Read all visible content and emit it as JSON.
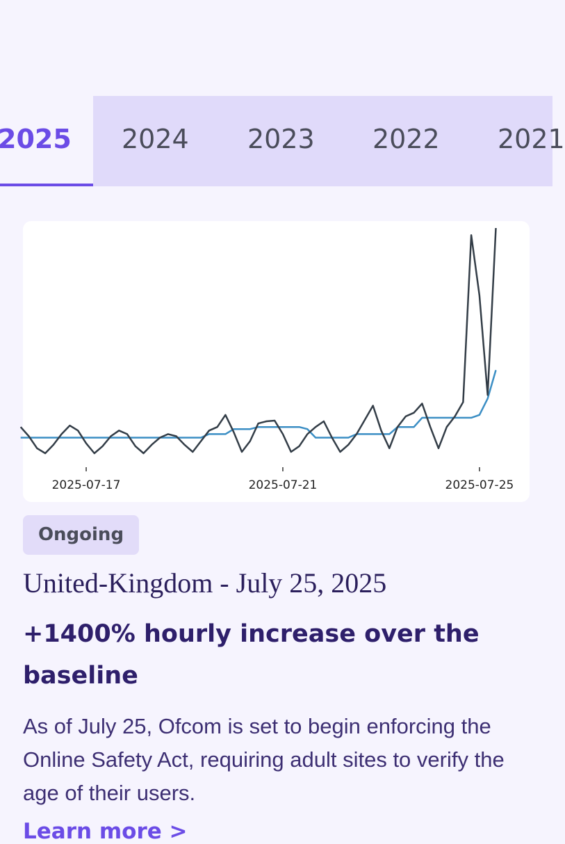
{
  "tabs": [
    "2025",
    "2024",
    "2023",
    "2022",
    "2021"
  ],
  "chart_data": {
    "type": "line",
    "categories": [
      null,
      null,
      null,
      null,
      null,
      null,
      null,
      null,
      "2025-07-17",
      null,
      null,
      null,
      null,
      null,
      null,
      null,
      null,
      null,
      null,
      null,
      null,
      null,
      null,
      null,
      null,
      null,
      null,
      null,
      null,
      null,
      null,
      null,
      "2025-07-21",
      null,
      null,
      null,
      null,
      null,
      null,
      null,
      null,
      null,
      null,
      null,
      null,
      null,
      null,
      null,
      null,
      null,
      null,
      null,
      null,
      null,
      null,
      null,
      "2025-07-25",
      null,
      null
    ],
    "series": [
      {
        "color": "#333d47",
        "values": [
          45,
          32,
          15,
          8,
          20,
          35,
          47,
          40,
          22,
          8,
          18,
          32,
          40,
          35,
          18,
          8,
          20,
          30,
          35,
          32,
          20,
          10,
          25,
          40,
          45,
          62,
          38,
          10,
          25,
          50,
          53,
          54,
          35,
          10,
          18,
          35,
          45,
          53,
          30,
          10,
          20,
          35,
          55,
          75,
          40,
          15,
          45,
          60,
          65,
          78,
          45,
          15,
          45,
          60,
          80,
          315,
          230,
          90,
          325
        ]
      },
      {
        "color": "#3b8ec4",
        "values": [
          30,
          30,
          30,
          30,
          30,
          30,
          30,
          30,
          30,
          30,
          30,
          30,
          30,
          30,
          30,
          30,
          30,
          30,
          30,
          30,
          30,
          30,
          30,
          35,
          35,
          35,
          42,
          42,
          42,
          45,
          45,
          45,
          45,
          45,
          45,
          42,
          30,
          30,
          30,
          30,
          30,
          35,
          35,
          35,
          35,
          35,
          45,
          45,
          45,
          58,
          58,
          58,
          58,
          58,
          58,
          58,
          62,
          85,
          125
        ]
      }
    ]
  },
  "badge": "Ongoing",
  "title": "United-Kingdom - July 25, 2025",
  "headline": "+1400% hourly increase over the baseline",
  "description": "As of July 25, Ofcom is set to begin enforcing the Online Safety Act, requiring adult sites to verify the age of their users.",
  "link": "Learn more >"
}
